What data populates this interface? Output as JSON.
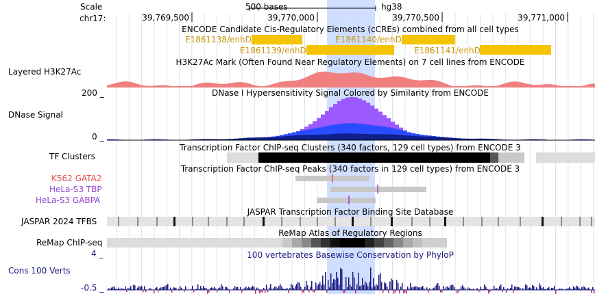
{
  "genome_browser": {
    "side_labels": {
      "scale": "Scale",
      "chrom": "chr17:",
      "h3k27ac": "Layered H3K27Ac",
      "dnase_max": "200 _",
      "dnase": "DNase Signal",
      "dnase_min": "0 _",
      "tf_clusters": "TF Clusters",
      "k562": "K562 GATA2",
      "hela_tbp": "HeLa-S3 TBP",
      "hela_gabpa": "HeLa-S3 GABPA",
      "jaspar": "JASPAR 2024 TFBS",
      "remap": "ReMap ChIP-seq",
      "cons_max": "4 _",
      "cons": "Cons 100 Verts",
      "cons_min": "-0.5 _"
    },
    "ruler": {
      "scale_text": "500 bases",
      "assembly": "hg38",
      "ticks": [
        {
          "label": "39,769,500",
          "x": 280
        },
        {
          "label": "39,770,000",
          "x": 463
        },
        {
          "label": "39,770,500",
          "x": 645
        },
        {
          "label": "39,771,000",
          "x": 828
        }
      ]
    },
    "tracks": {
      "ccre_title": "ENCODE Candidate Cis-Regulatory Elements (cCREs) combined from all cell types",
      "ccre_elements": [
        {
          "name": "E1861138/enhD",
          "color": "#f5c400"
        },
        {
          "name": "E1861140/enhD",
          "color": "#f5c400"
        },
        {
          "name": "E1861139/enhD",
          "color": "#f5c400"
        },
        {
          "name": "E1861141/enhD",
          "color": "#f5c400"
        }
      ],
      "h3k27ac_title": "H3K27Ac Mark (Often Found Near Regulatory Elements) on 7 cell lines from ENCODE",
      "dnase_title": "DNase I Hypersensitivity Signal Colored by Similarity from ENCODE",
      "tf_clusters_title": "Transcription Factor ChIP-seq Clusters (340 factors, 129 cell types) from ENCODE 3",
      "tf_peaks_title": "Transcription Factor ChIP-seq Peaks (340 factors in 129 cell types) from ENCODE 3",
      "jaspar_title": "JASPAR Transcription Factor Binding Site Database",
      "remap_title": "ReMap Atlas of Regulatory Regions",
      "cons_title": "100 vertebrates Basewise Conservation by PhyloP"
    },
    "colors": {
      "highlight": "#c8d8ff",
      "h3k27ac": "#f08080",
      "dnase_top": "#9b59ff",
      "dnase_mid": "#2a4bff",
      "dnase_low": "#10208a",
      "ccre": "#f5c400",
      "ccre_text": "#c8960a",
      "cons": "#1a1a80",
      "k562": "#e05050",
      "hela": "#9040d0"
    }
  }
}
